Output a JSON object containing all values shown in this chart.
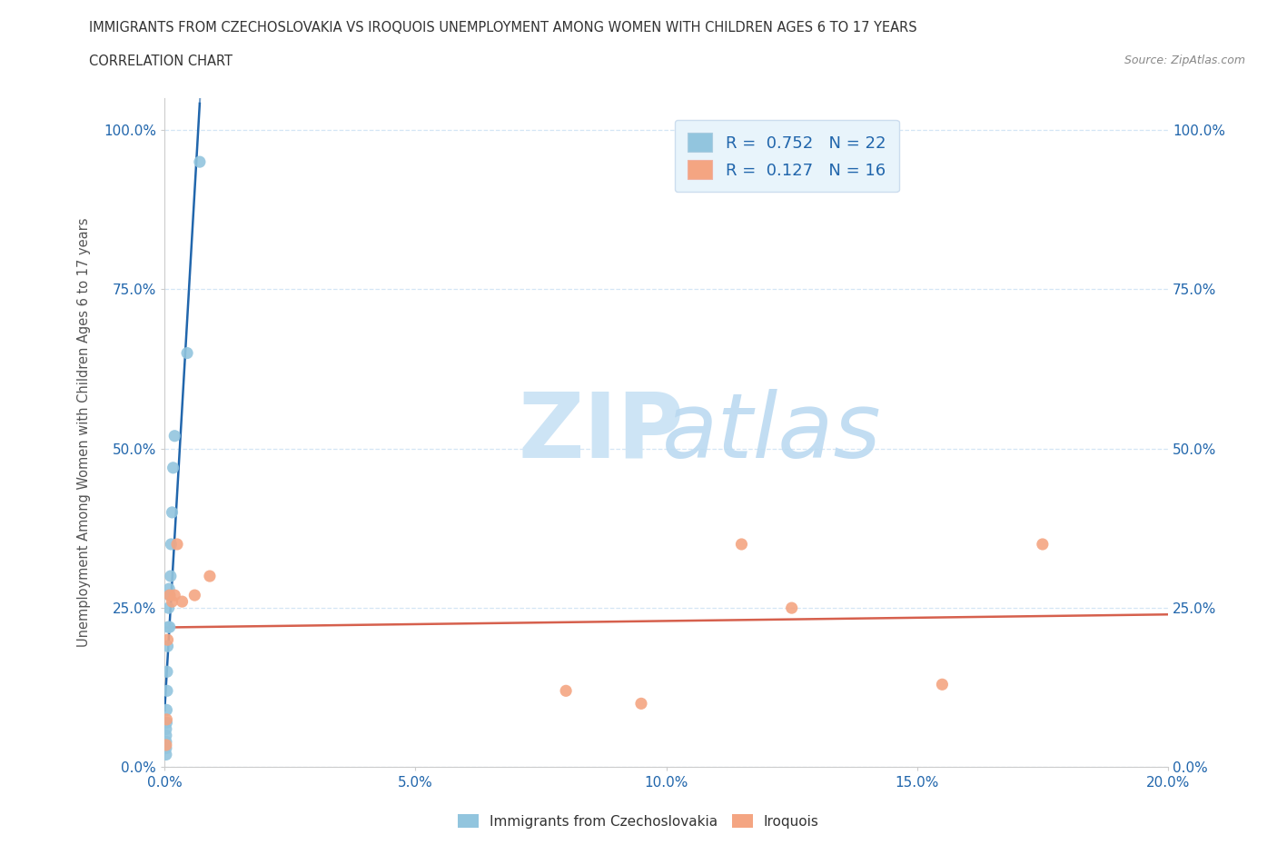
{
  "title": "IMMIGRANTS FROM CZECHOSLOVAKIA VS IROQUOIS UNEMPLOYMENT AMONG WOMEN WITH CHILDREN AGES 6 TO 17 YEARS",
  "subtitle": "CORRELATION CHART",
  "source": "Source: ZipAtlas.com",
  "xlabel_bottom": "Immigrants from Czechoslovakia",
  "ylabel": "Unemployment Among Women with Children Ages 6 to 17 years",
  "blue_color": "#92c5de",
  "pink_color": "#f4a582",
  "blue_line_color": "#2166ac",
  "pink_line_color": "#d6604d",
  "blue_R": 0.752,
  "blue_N": 22,
  "pink_R": 0.127,
  "pink_N": 16,
  "blue_points_x": [
    0.0003,
    0.0003,
    0.0003,
    0.0003,
    0.0003,
    0.0004,
    0.0004,
    0.0005,
    0.0005,
    0.0006,
    0.0007,
    0.0008,
    0.0009,
    0.001,
    0.001,
    0.0012,
    0.0013,
    0.0015,
    0.0017,
    0.002,
    0.0045,
    0.007
  ],
  "blue_points_y": [
    0.02,
    0.03,
    0.04,
    0.05,
    0.06,
    0.07,
    0.09,
    0.12,
    0.15,
    0.19,
    0.22,
    0.25,
    0.28,
    0.22,
    0.27,
    0.3,
    0.35,
    0.4,
    0.47,
    0.52,
    0.65,
    0.95
  ],
  "pink_points_x": [
    0.0003,
    0.0004,
    0.0006,
    0.001,
    0.0015,
    0.002,
    0.0025,
    0.0035,
    0.006,
    0.009,
    0.08,
    0.095,
    0.115,
    0.125,
    0.155,
    0.175
  ],
  "pink_points_y": [
    0.035,
    0.075,
    0.2,
    0.27,
    0.26,
    0.27,
    0.35,
    0.26,
    0.27,
    0.3,
    0.12,
    0.1,
    0.35,
    0.25,
    0.13,
    0.35
  ],
  "xlim": [
    0.0,
    0.2
  ],
  "ylim": [
    0.0,
    1.05
  ],
  "xticks": [
    0.0,
    0.05,
    0.1,
    0.15,
    0.2
  ],
  "xtick_labels": [
    "0.0%",
    "5.0%",
    "10.0%",
    "15.0%",
    "20.0%"
  ],
  "yticks": [
    0.0,
    0.25,
    0.5,
    0.75,
    1.0
  ],
  "ytick_labels": [
    "0.0%",
    "25.0%",
    "50.0%",
    "75.0%",
    "100.0%"
  ],
  "grid_color": "#d4e6f5",
  "grid_style": "--",
  "background_color": "#ffffff",
  "watermark_zip_color": "#cde4f5",
  "watermark_atlas_color": "#b8d8f0",
  "legend_box_color": "#e8f4fb",
  "legend_text_color": "#2166ac",
  "tick_color": "#2166ac",
  "title_color": "#333333",
  "ylabel_color": "#555555",
  "source_color": "#888888"
}
